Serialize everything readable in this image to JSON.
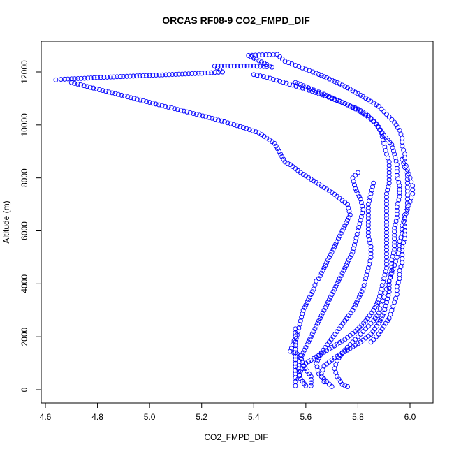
{
  "chart_data": {
    "type": "scatter",
    "title": "ORCAS RF08-9 CO2_FMPD_DIF",
    "xlabel": "CO2_FMPD_DIF",
    "ylabel": "Altitude (m)",
    "xlim": [
      4.6,
      6.0
    ],
    "ylim": [
      0,
      12000
    ],
    "x_ticks": [
      "4.6",
      "4.8",
      "5.0",
      "5.2",
      "5.4",
      "5.6",
      "5.8",
      "6.0"
    ],
    "y_ticks": [
      "0",
      "2000",
      "4000",
      "6000",
      "8000",
      "10000",
      "12000"
    ],
    "marker": "open-circle",
    "marker_color": "#0000ff",
    "grid": false,
    "series": [
      {
        "points": [
          [
            4.64,
            11700
          ],
          [
            4.66,
            11720
          ],
          [
            4.7,
            11740
          ],
          [
            4.75,
            11760
          ],
          [
            4.8,
            11790
          ],
          [
            4.85,
            11810
          ],
          [
            4.9,
            11830
          ],
          [
            4.95,
            11850
          ],
          [
            5.0,
            11870
          ],
          [
            5.05,
            11890
          ],
          [
            5.1,
            11910
          ],
          [
            5.15,
            11930
          ],
          [
            5.2,
            11950
          ],
          [
            5.25,
            11980
          ],
          [
            5.28,
            12000
          ],
          [
            5.25,
            12220
          ],
          [
            5.3,
            12220
          ],
          [
            5.35,
            12220
          ],
          [
            5.4,
            12220
          ],
          [
            5.45,
            12200
          ],
          [
            5.47,
            12180
          ],
          [
            5.38,
            12620
          ],
          [
            5.42,
            12640
          ],
          [
            5.46,
            12650
          ],
          [
            5.49,
            12660
          ],
          [
            5.52,
            12400
          ],
          [
            5.56,
            12250
          ],
          [
            5.6,
            12100
          ],
          [
            5.64,
            11950
          ],
          [
            5.68,
            11780
          ],
          [
            5.72,
            11600
          ],
          [
            5.76,
            11400
          ],
          [
            5.8,
            11180
          ],
          [
            5.84,
            10950
          ],
          [
            5.88,
            10700
          ],
          [
            5.91,
            10400
          ],
          [
            5.94,
            10100
          ],
          [
            5.96,
            9800
          ],
          [
            5.97,
            9500
          ],
          [
            5.97,
            9200
          ],
          [
            5.98,
            8900
          ],
          [
            5.98,
            8600
          ],
          [
            5.99,
            8300
          ],
          [
            6.0,
            8000
          ],
          [
            6.01,
            7700
          ],
          [
            6.01,
            7400
          ],
          [
            6.0,
            7100
          ],
          [
            5.99,
            6800
          ],
          [
            5.98,
            6500
          ],
          [
            5.97,
            6200
          ],
          [
            5.97,
            5900
          ],
          [
            5.96,
            5600
          ],
          [
            5.96,
            5300
          ],
          [
            5.95,
            5000
          ],
          [
            5.94,
            4700
          ],
          [
            5.93,
            4400
          ],
          [
            5.92,
            4100
          ],
          [
            5.91,
            3800
          ],
          [
            5.9,
            3500
          ],
          [
            5.89,
            3200
          ],
          [
            5.88,
            2900
          ],
          [
            5.86,
            2600
          ],
          [
            5.83,
            2300
          ],
          [
            5.8,
            2000
          ],
          [
            5.77,
            1700
          ],
          [
            5.74,
            1400
          ],
          [
            5.72,
            1100
          ],
          [
            5.71,
            800
          ],
          [
            5.72,
            500
          ],
          [
            5.74,
            200
          ],
          [
            5.76,
            120
          ],
          [
            4.7,
            11600
          ],
          [
            4.76,
            11450
          ],
          [
            4.82,
            11300
          ],
          [
            4.88,
            11150
          ],
          [
            4.94,
            11000
          ],
          [
            5.0,
            10850
          ],
          [
            5.06,
            10700
          ],
          [
            5.12,
            10550
          ],
          [
            5.18,
            10400
          ],
          [
            5.24,
            10250
          ],
          [
            5.3,
            10080
          ],
          [
            5.36,
            9900
          ],
          [
            5.42,
            9700
          ],
          [
            5.48,
            9300
          ],
          [
            5.52,
            8600
          ],
          [
            5.54,
            8500
          ],
          [
            5.58,
            8200
          ],
          [
            5.62,
            7950
          ],
          [
            5.66,
            7700
          ],
          [
            5.7,
            7450
          ],
          [
            5.74,
            7150
          ],
          [
            5.76,
            7000
          ],
          [
            5.77,
            6600
          ],
          [
            5.75,
            6200
          ],
          [
            5.73,
            5800
          ],
          [
            5.71,
            5400
          ],
          [
            5.69,
            5000
          ],
          [
            5.67,
            4600
          ],
          [
            5.65,
            4200
          ],
          [
            5.64,
            4100
          ],
          [
            5.63,
            3800
          ],
          [
            5.61,
            3400
          ],
          [
            5.59,
            3000
          ],
          [
            5.58,
            2600
          ],
          [
            5.57,
            2200
          ],
          [
            5.56,
            1800
          ],
          [
            5.56,
            1400
          ],
          [
            5.56,
            1000
          ],
          [
            5.56,
            600
          ],
          [
            5.56,
            300
          ],
          [
            5.56,
            150
          ],
          [
            5.8,
            8200
          ],
          [
            5.78,
            8000
          ],
          [
            5.79,
            7600
          ],
          [
            5.81,
            7200
          ],
          [
            5.82,
            6800
          ],
          [
            5.81,
            6400
          ],
          [
            5.8,
            6000
          ],
          [
            5.79,
            5600
          ],
          [
            5.78,
            5200
          ],
          [
            5.76,
            4800
          ],
          [
            5.74,
            4400
          ],
          [
            5.72,
            4000
          ],
          [
            5.7,
            3600
          ],
          [
            5.68,
            3200
          ],
          [
            5.66,
            2800
          ],
          [
            5.64,
            2400
          ],
          [
            5.62,
            2000
          ],
          [
            5.6,
            1600
          ],
          [
            5.58,
            1200
          ],
          [
            5.57,
            800
          ],
          [
            5.58,
            400
          ],
          [
            5.6,
            150
          ],
          [
            5.86,
            7800
          ],
          [
            5.85,
            7400
          ],
          [
            5.84,
            7000
          ],
          [
            5.84,
            6600
          ],
          [
            5.84,
            6200
          ],
          [
            5.84,
            5800
          ],
          [
            5.85,
            5400
          ],
          [
            5.85,
            5000
          ],
          [
            5.84,
            4600
          ],
          [
            5.83,
            4200
          ],
          [
            5.82,
            3800
          ],
          [
            5.8,
            3400
          ],
          [
            5.78,
            3000
          ],
          [
            5.75,
            2600
          ],
          [
            5.72,
            2200
          ],
          [
            5.69,
            1800
          ],
          [
            5.66,
            1400
          ],
          [
            5.64,
            1000
          ],
          [
            5.65,
            600
          ],
          [
            5.68,
            300
          ],
          [
            5.7,
            120
          ],
          [
            5.4,
            11900
          ],
          [
            5.45,
            11800
          ],
          [
            5.5,
            11650
          ],
          [
            5.55,
            11500
          ],
          [
            5.6,
            11350
          ],
          [
            5.65,
            11180
          ],
          [
            5.7,
            11000
          ],
          [
            5.75,
            10800
          ],
          [
            5.8,
            10600
          ],
          [
            5.84,
            10350
          ],
          [
            5.87,
            10050
          ],
          [
            5.89,
            9700
          ],
          [
            5.9,
            9300
          ],
          [
            5.91,
            8900
          ],
          [
            5.92,
            8600
          ],
          [
            5.92,
            8200
          ],
          [
            5.92,
            7800
          ],
          [
            5.91,
            7400
          ],
          [
            5.91,
            7000
          ],
          [
            5.91,
            6600
          ],
          [
            5.91,
            6200
          ],
          [
            5.91,
            5800
          ],
          [
            5.91,
            5400
          ],
          [
            5.91,
            5000
          ],
          [
            5.91,
            4600
          ],
          [
            5.9,
            4200
          ],
          [
            5.89,
            3800
          ],
          [
            5.88,
            3400
          ],
          [
            5.86,
            3000
          ],
          [
            5.83,
            2600
          ],
          [
            5.79,
            2200
          ],
          [
            5.75,
            1900
          ],
          [
            5.7,
            1600
          ],
          [
            5.65,
            1300
          ],
          [
            5.6,
            1000
          ],
          [
            5.58,
            700
          ],
          [
            5.57,
            400
          ],
          [
            5.56,
            11600
          ],
          [
            5.61,
            11400
          ],
          [
            5.66,
            11200
          ],
          [
            5.71,
            10980
          ],
          [
            5.76,
            10760
          ],
          [
            5.81,
            10500
          ],
          [
            5.85,
            10220
          ],
          [
            5.88,
            9920
          ],
          [
            5.9,
            9600
          ],
          [
            5.93,
            9250
          ],
          [
            5.94,
            8900
          ],
          [
            5.95,
            8500
          ],
          [
            5.95,
            8100
          ],
          [
            5.96,
            7700
          ],
          [
            5.96,
            7300
          ],
          [
            5.95,
            6900
          ],
          [
            5.95,
            6500
          ],
          [
            5.94,
            6100
          ],
          [
            5.94,
            5700
          ],
          [
            5.94,
            5300
          ],
          [
            5.93,
            4900
          ],
          [
            5.93,
            4500
          ],
          [
            5.92,
            4100
          ],
          [
            5.92,
            3700
          ],
          [
            5.91,
            3300
          ],
          [
            5.9,
            2900
          ],
          [
            5.88,
            2500
          ],
          [
            5.85,
            2100
          ],
          [
            5.81,
            1800
          ],
          [
            5.76,
            1500
          ],
          [
            5.71,
            1200
          ],
          [
            5.67,
            900
          ],
          [
            5.66,
            600
          ],
          [
            5.67,
            300
          ],
          [
            5.97,
            8700
          ],
          [
            5.98,
            8400
          ],
          [
            5.99,
            8100
          ],
          [
            5.99,
            7800
          ],
          [
            5.99,
            7500
          ],
          [
            5.99,
            7200
          ],
          [
            5.99,
            6900
          ],
          [
            5.98,
            6600
          ],
          [
            5.98,
            6300
          ],
          [
            5.98,
            6000
          ],
          [
            5.98,
            5700
          ],
          [
            5.97,
            5400
          ],
          [
            5.97,
            5100
          ],
          [
            5.97,
            4800
          ],
          [
            5.96,
            4500
          ],
          [
            5.96,
            4200
          ],
          [
            5.95,
            3900
          ],
          [
            5.95,
            3600
          ],
          [
            5.94,
            3300
          ],
          [
            5.93,
            3000
          ],
          [
            5.92,
            2700
          ],
          [
            5.9,
            2400
          ],
          [
            5.88,
            2100
          ],
          [
            5.85,
            1800
          ],
          [
            5.56,
            2300
          ],
          [
            5.56,
            2000
          ],
          [
            5.55,
            1700
          ],
          [
            5.54,
            1450
          ],
          [
            5.58,
            1300
          ],
          [
            5.59,
            900
          ],
          [
            5.62,
            500
          ],
          [
            5.62,
            150
          ]
        ]
      }
    ]
  }
}
